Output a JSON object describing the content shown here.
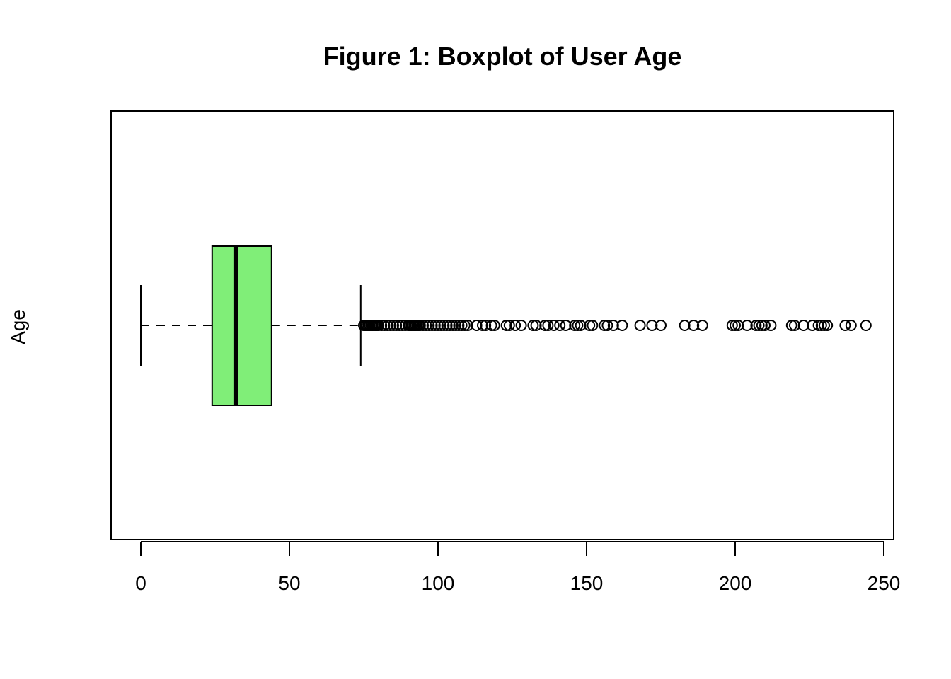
{
  "chart_data": {
    "type": "boxplot",
    "orientation": "horizontal",
    "title": "Figure 1: Boxplot of User Age",
    "xlabel": "",
    "ylabel": "Age",
    "xlim": [
      -10,
      254
    ],
    "xticks": [
      0,
      50,
      100,
      150,
      200,
      250
    ],
    "xtick_labels": [
      "0",
      "50",
      "100",
      "150",
      "200",
      "250"
    ],
    "box_color": "#80EE78",
    "stats": {
      "whisker_low": 0,
      "q1": 24,
      "median": 32,
      "q3": 44,
      "whisker_high": 74
    },
    "outliers": [
      75,
      75.5,
      76,
      76.5,
      77,
      77.5,
      78,
      78.5,
      79,
      79.5,
      80,
      81,
      82,
      83,
      84,
      85,
      86,
      87,
      88,
      89,
      90,
      90.5,
      91,
      91.5,
      92,
      92.5,
      93,
      93.5,
      94,
      95,
      96,
      97,
      98,
      99,
      100,
      101,
      102,
      103,
      104,
      105,
      106,
      107,
      108,
      109,
      110,
      113,
      115,
      116,
      118,
      119,
      123,
      124,
      126,
      128,
      132,
      133,
      136,
      137,
      139,
      141,
      143,
      146,
      147,
      148,
      151,
      152,
      156,
      157,
      159,
      162,
      168,
      172,
      175,
      183,
      186,
      189,
      199,
      200,
      201,
      204,
      207,
      208,
      209,
      210,
      212,
      219,
      220,
      223,
      226,
      228,
      229,
      230,
      231,
      237,
      239,
      244
    ]
  }
}
